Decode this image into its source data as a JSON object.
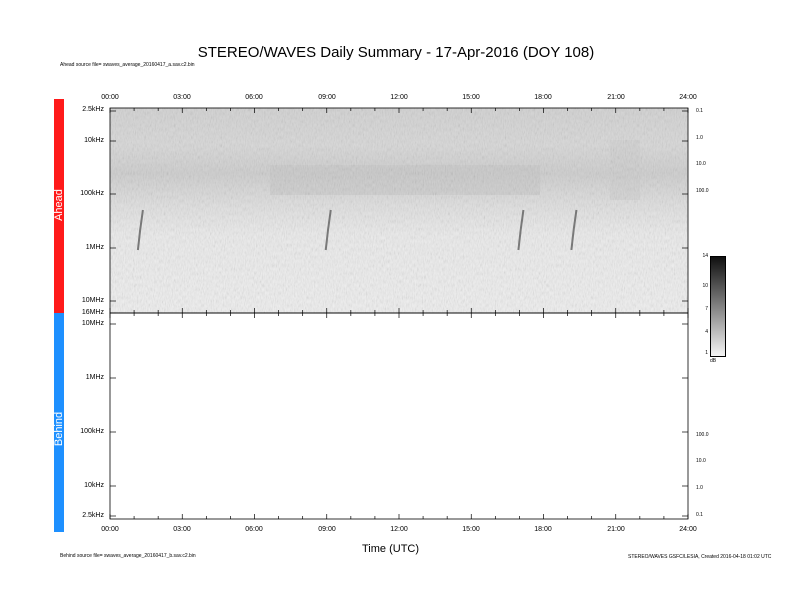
{
  "title": "STEREO/WAVES Daily Summary - 17-Apr-2016 (DOY 108)",
  "notes": {
    "ahead_source": "Ahead source file= swaves_average_20160417_a.sav.c2.bin",
    "behind_source": "Behind source file= swaves_average_20160417_b.sav.c2.bin",
    "credit": "STEREO/WAVES GSFC/LESIA, Created 2016-04-18 01:02 UTC"
  },
  "colors": {
    "ahead_bar": "#ff1a1a",
    "behind_bar": "#1e90ff",
    "spectrogram_bg": "#e6e6e6"
  },
  "chart_data": {
    "type": "heatmap",
    "title": "STEREO/WAVES Daily Summary - 17-Apr-2016 (DOY 108)",
    "xlabel": "Time (UTC)",
    "x_tick_labels": [
      "00:00",
      "03:00",
      "06:00",
      "09:00",
      "12:00",
      "15:00",
      "18:00",
      "21:00",
      "24:00"
    ],
    "xlim_hours": [
      0,
      24
    ],
    "panels": [
      {
        "name": "Ahead",
        "left_tick_labels": [
          "2.5kHz",
          "10kHz",
          "100kHz",
          "1MHz",
          "10MHz",
          "16MHz"
        ],
        "right_tick_labels": [
          "0.1",
          "1.0",
          "10.0",
          "100.0"
        ],
        "has_data": true,
        "type_iii_bursts_hours": [
          1.2,
          9.0,
          17.0,
          19.2
        ]
      },
      {
        "name": "Behind",
        "left_tick_labels": [
          "16MHz",
          "10MHz",
          "1MHz",
          "100kHz",
          "10kHz",
          "2.5kHz"
        ],
        "right_tick_labels": [
          "100.0",
          "10.0",
          "1.0",
          "0.1"
        ],
        "has_data": false
      }
    ],
    "colorbar": {
      "tick_labels": [
        "14",
        "10",
        "7",
        "4",
        "1"
      ],
      "range": [
        1,
        14
      ],
      "unit": "dB"
    }
  }
}
